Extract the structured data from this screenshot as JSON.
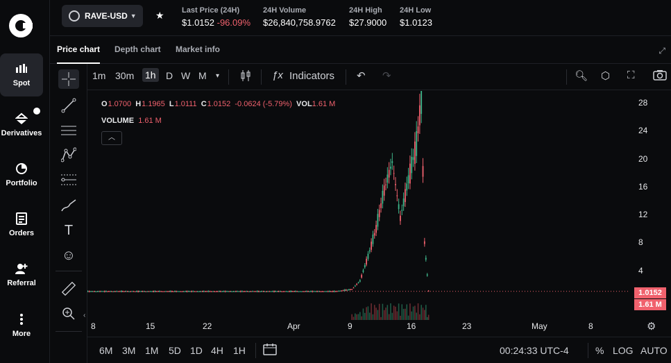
{
  "nav": {
    "items": [
      {
        "label": "Spot",
        "icon": "bar-chart-icon"
      },
      {
        "label": "Derivatives",
        "icon": "derivatives-icon"
      },
      {
        "label": "Portfolio",
        "icon": "pie-chart-icon"
      },
      {
        "label": "Orders",
        "icon": "orders-icon"
      },
      {
        "label": "Referral",
        "icon": "add-user-icon"
      },
      {
        "label": "More",
        "icon": "more-icon"
      }
    ]
  },
  "header": {
    "pair": "RAVE-USD",
    "last_price_label": "Last Price (24H)",
    "last_price": "$1.0152",
    "change": "-96.09%",
    "volume_label": "24H Volume",
    "volume": "$26,840,758.9762",
    "high_label": "24H High",
    "high": "$27.9000",
    "low_label": "24H Low",
    "low": "$1.0123"
  },
  "tabs": [
    "Price chart",
    "Depth chart",
    "Market info"
  ],
  "toolbar": {
    "timeframes": [
      "1m",
      "30m",
      "1h",
      "D",
      "W",
      "M"
    ],
    "active_timeframe": "1h",
    "indicators_label": "Indicators"
  },
  "legend": {
    "o_key": "O",
    "o": "1.0700",
    "h_key": "H",
    "h": "1.1965",
    "l_key": "L",
    "l": "1.0111",
    "c_key": "C",
    "c": "1.0152",
    "chg": "-0.0624 (-5.79%)",
    "vol_key": "VOL",
    "vol": "1.61 M",
    "volume_key": "VOLUME",
    "volume": "1.61 M"
  },
  "chart_data": {
    "type": "candlestick",
    "y_ticks": [
      "28",
      "24",
      "20",
      "16",
      "12",
      "8",
      "4"
    ],
    "ylim": [
      0,
      29
    ],
    "x_ticks": [
      "8",
      "15",
      "22",
      "Apr",
      "9",
      "16",
      "23",
      "May",
      "8"
    ],
    "last_price_tag": "1.0152",
    "last_volume_tag": "1.61 M",
    "close_series": [
      {
        "x": "Mar 5",
        "y": 1.0
      },
      {
        "x": "Mar 12",
        "y": 1.0
      },
      {
        "x": "Mar 19",
        "y": 1.0
      },
      {
        "x": "Mar 26",
        "y": 1.0
      },
      {
        "x": "Apr 2",
        "y": 1.0
      },
      {
        "x": "Apr 7",
        "y": 1.0
      },
      {
        "x": "Apr 9",
        "y": 1.3
      },
      {
        "x": "Apr 10",
        "y": 2.5
      },
      {
        "x": "Apr 11",
        "y": 6.0
      },
      {
        "x": "Apr 12",
        "y": 10.0
      },
      {
        "x": "Apr 13",
        "y": 15.5
      },
      {
        "x": "Apr 14",
        "y": 19.5
      },
      {
        "x": "Apr 15",
        "y": 11.5
      },
      {
        "x": "Apr 16",
        "y": 17.0
      },
      {
        "x": "Apr 17",
        "y": 22.0
      },
      {
        "x": "Apr 17.6",
        "y": 28.5
      },
      {
        "x": "Apr 18",
        "y": 8.0
      },
      {
        "x": "Apr 18.5",
        "y": 1.0152
      }
    ],
    "colors": {
      "up": "#3fb68b",
      "down": "#f0616d"
    }
  },
  "bottom": {
    "ranges": [
      "6M",
      "3M",
      "1M",
      "5D",
      "1D",
      "4H",
      "1H"
    ],
    "clock": "00:24:33 UTC-4",
    "percent": "%",
    "log": "LOG",
    "auto": "AUTO"
  }
}
